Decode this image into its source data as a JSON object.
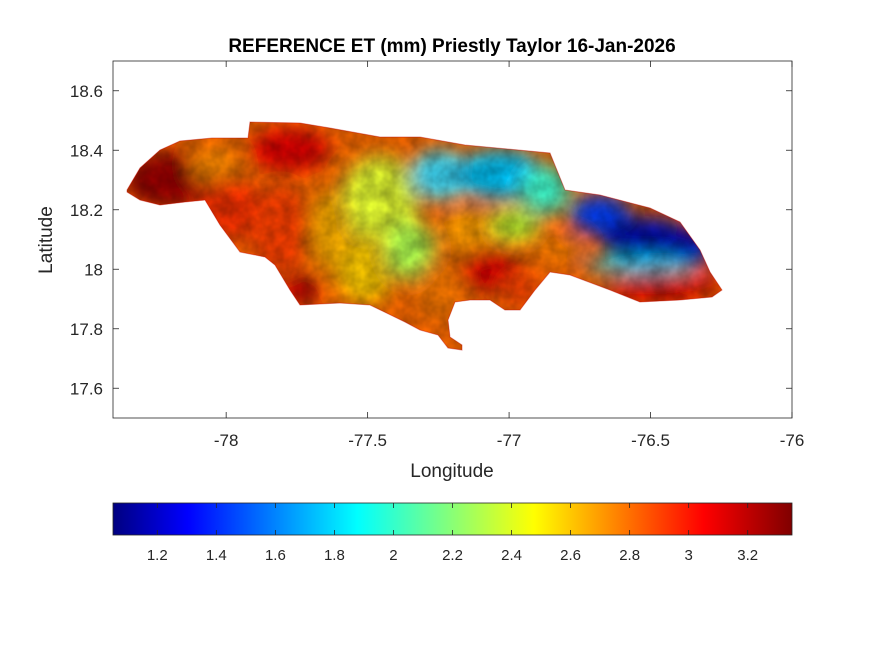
{
  "title": "REFERENCE ET (mm) Priestly Taylor 16-Jan-2026",
  "xlabel": "Longitude",
  "ylabel": "Latitude",
  "map": {
    "region": "Jamaica",
    "xlim": [
      -78.4,
      -76
    ],
    "ylim": [
      17.5,
      18.7
    ],
    "x_ticks": [
      "-78",
      "-77.5",
      "-77",
      "-76.5",
      "-76"
    ],
    "y_ticks": [
      "17.6",
      "17.8",
      "18",
      "18.2",
      "18.4",
      "18.6"
    ],
    "field_summary": [
      {
        "area": "western tip (Hanover/Westmoreland)",
        "value": 3.3
      },
      {
        "area": "western parishes",
        "value": 2.9
      },
      {
        "area": "central-north (Trelawny/St Ann)",
        "value": 2.3
      },
      {
        "area": "north-central coast",
        "value": 1.9
      },
      {
        "area": "south-central (Clarendon/Manchester)",
        "value": 2.8
      },
      {
        "area": "Kingston/St Andrew",
        "value": 2.8
      },
      {
        "area": "north-east (Portland)",
        "value": 1.1
      },
      {
        "area": "south-east (St Thomas)",
        "value": 3.1
      }
    ]
  },
  "colorbar": {
    "colormap": "jet",
    "range": [
      1.05,
      3.35
    ],
    "ticks": [
      "1.2",
      "1.4",
      "1.6",
      "1.8",
      "2",
      "2.2",
      "2.4",
      "2.6",
      "2.8",
      "3",
      "3.2"
    ]
  }
}
